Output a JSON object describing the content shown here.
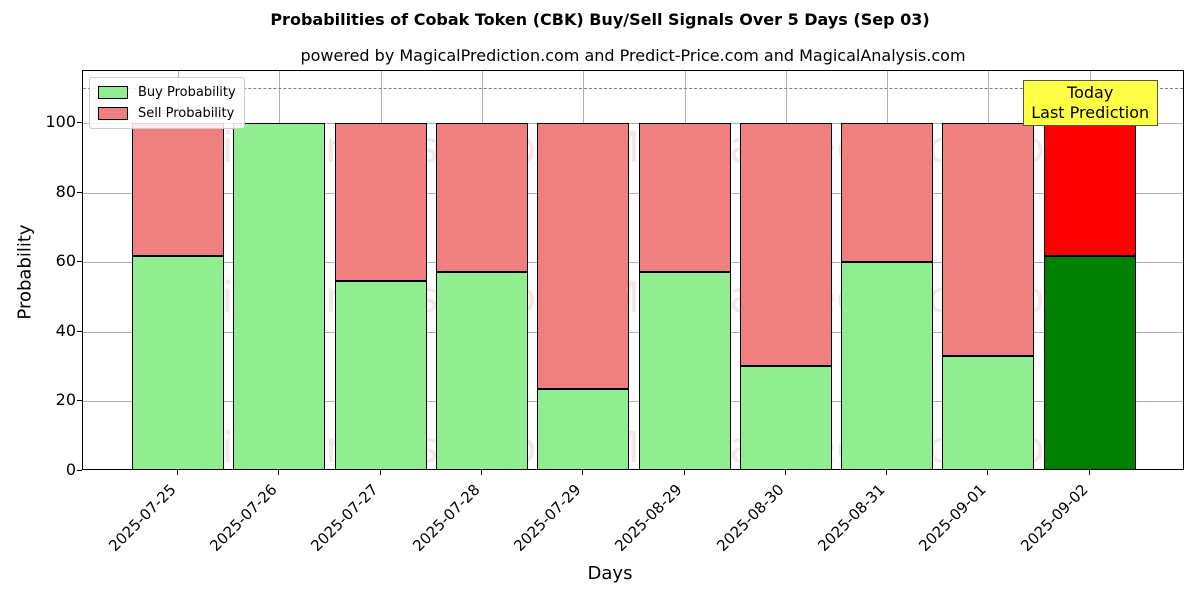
{
  "title": "Probabilities of Cobak Token (CBK) Buy/Sell Signals Over 5 Days (Sep 03)",
  "subtitle": "powered by MagicalPrediction.com and Predict-Price.com and MagicalAnalysis.com",
  "legend": {
    "buy_label": "Buy Probability",
    "sell_label": "Sell Probability"
  },
  "annotation": {
    "line1": "Today",
    "line2": "Last Prediction"
  },
  "watermarks": [
    "MagicalAnalysis.com",
    "MagicalPrediction.com"
  ],
  "colors": {
    "buy": "#90ee90",
    "sell": "#f08080",
    "today_buy": "#008000",
    "today_sell": "#ff0000",
    "annotation_bg": "#ffff44"
  },
  "chart_data": {
    "type": "bar",
    "stacked": true,
    "title": "Probabilities of Cobak Token (CBK) Buy/Sell Signals Over 5 Days (Sep 03)",
    "subtitle": "powered by MagicalPrediction.com and Predict-Price.com and MagicalAnalysis.com",
    "xlabel": "Days",
    "ylabel": "Probability",
    "ylim": [
      0,
      115
    ],
    "yticks": [
      0,
      20,
      40,
      60,
      80,
      100
    ],
    "grid": true,
    "legend_position": "upper left",
    "reference_line": 110,
    "categories": [
      "2025-07-25",
      "2025-07-26",
      "2025-07-27",
      "2025-07-28",
      "2025-07-29",
      "2025-08-29",
      "2025-08-30",
      "2025-08-31",
      "2025-09-01",
      "2025-09-02"
    ],
    "series": [
      {
        "name": "Buy Probability",
        "values": [
          61.8,
          100.0,
          54.5,
          57.2,
          23.6,
          57.2,
          30.2,
          60.0,
          33.1,
          61.7
        ]
      },
      {
        "name": "Sell Probability",
        "values": [
          38.2,
          0.0,
          45.5,
          42.8,
          76.4,
          42.8,
          69.8,
          40.0,
          66.9,
          38.3
        ]
      }
    ],
    "annotations": [
      {
        "text": "Today\nLast Prediction",
        "x": "2025-09-02"
      }
    ]
  }
}
